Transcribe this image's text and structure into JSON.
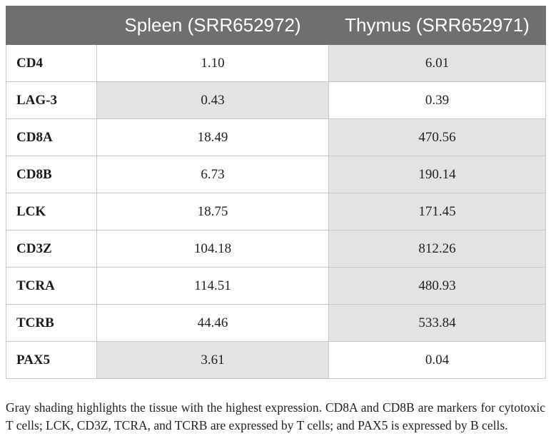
{
  "table": {
    "header": {
      "blank": "",
      "spleen": "Spleen (SRR652972)",
      "thymus": "Thymus (SRR652971)"
    },
    "rows": [
      {
        "gene": "CD4",
        "spleen": "1.10",
        "thymus": "6.01",
        "highlight": "thymus"
      },
      {
        "gene": "LAG-3",
        "spleen": "0.43",
        "thymus": "0.39",
        "highlight": "spleen"
      },
      {
        "gene": "CD8A",
        "spleen": "18.49",
        "thymus": "470.56",
        "highlight": "thymus"
      },
      {
        "gene": "CD8B",
        "spleen": "6.73",
        "thymus": "190.14",
        "highlight": "thymus"
      },
      {
        "gene": "LCK",
        "spleen": "18.75",
        "thymus": "171.45",
        "highlight": "thymus"
      },
      {
        "gene": "CD3Z",
        "spleen": "104.18",
        "thymus": "812.26",
        "highlight": "thymus"
      },
      {
        "gene": "TCRA",
        "spleen": "114.51",
        "thymus": "480.93",
        "highlight": "thymus"
      },
      {
        "gene": "TCRB",
        "spleen": "44.46",
        "thymus": "533.84",
        "highlight": "thymus"
      },
      {
        "gene": "PAX5",
        "spleen": "3.61",
        "thymus": "0.04",
        "highlight": "spleen"
      }
    ]
  },
  "footnote": "Gray shading highlights the tissue with the highest expression. CD8A and CD8B are markers for cytotoxic T cells; LCK, CD3Z, TCRA, and TCRB are expressed by T cells; and PAX5 is expressed by B cells.",
  "colors": {
    "header_bg": "#6f6f6f",
    "header_text": "#ffffff",
    "highlight_bg": "#e3e3e3",
    "grid": "#c8c8c8"
  }
}
